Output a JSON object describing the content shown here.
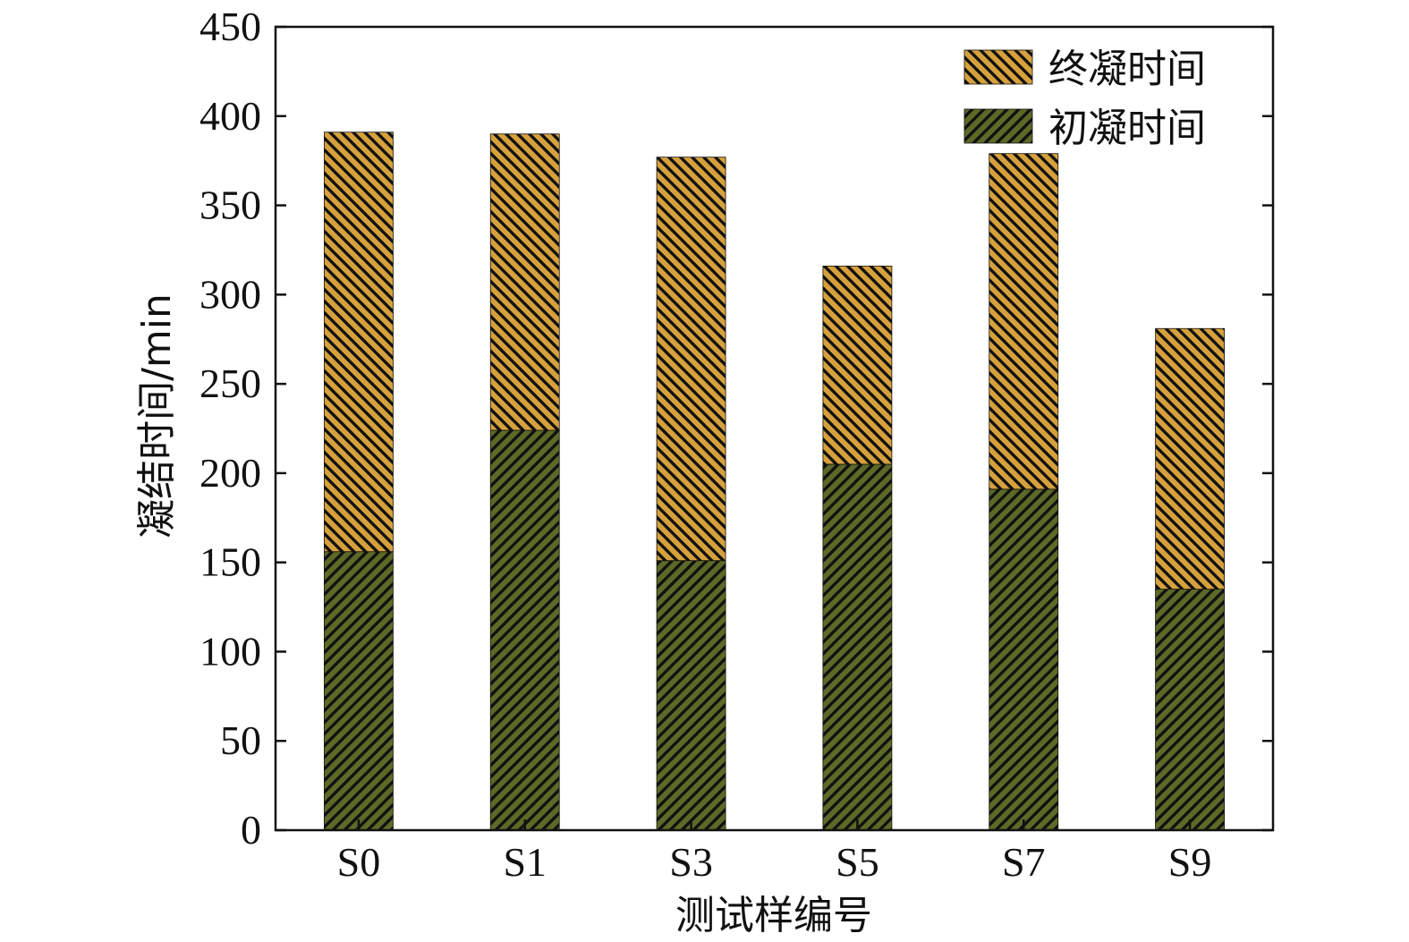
{
  "chart_data": {
    "type": "bar",
    "stacked": true,
    "categories": [
      "S0",
      "S1",
      "S3",
      "S5",
      "S7",
      "S9"
    ],
    "series": [
      {
        "name": "初凝时间",
        "values": [
          156,
          224,
          151,
          205,
          191,
          135
        ],
        "color": "#5b6a26"
      },
      {
        "name": "终凝时间",
        "values": [
          235,
          166,
          226,
          111,
          188,
          146
        ],
        "color": "#d6a03c"
      }
    ],
    "totals": [
      391,
      390,
      377,
      316,
      379,
      281
    ],
    "xlabel": "测试样编号",
    "ylabel": "凝结时间/min",
    "ylim": [
      0,
      450
    ],
    "yticks": [
      0,
      50,
      100,
      150,
      200,
      250,
      300,
      350,
      400,
      450
    ],
    "legend_position": "top-right",
    "legend_order": [
      "终凝时间",
      "初凝时间"
    ],
    "grid": false,
    "hatch_color": "#111111"
  }
}
